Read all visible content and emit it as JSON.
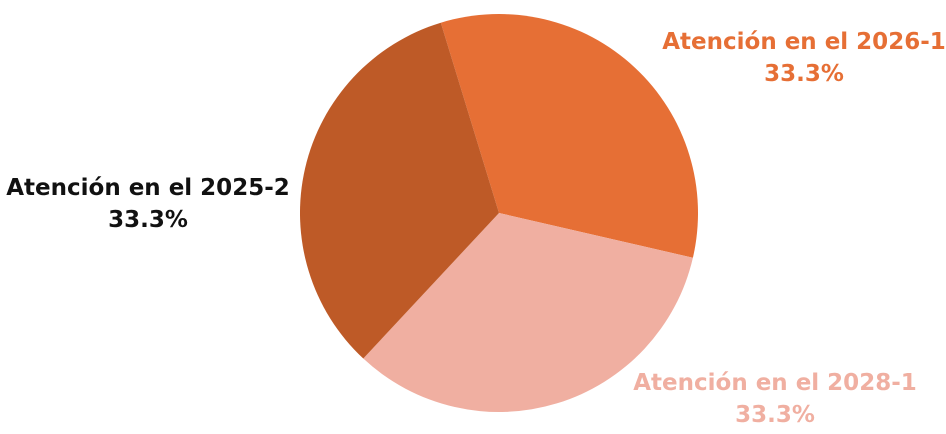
{
  "chart_data": {
    "type": "pie",
    "title": "",
    "start_angle_deg": -17,
    "slices": [
      {
        "label": "Atención en el 2026-1",
        "value": 33.3,
        "percent_label": "33.3%",
        "color": "#E66F35",
        "label_color": "#E66F35"
      },
      {
        "label": "Atención en el 2028-1",
        "value": 33.3,
        "percent_label": "33.3%",
        "color": "#F0AFA1",
        "label_color": "#F0AFA1"
      },
      {
        "label": "Atención en el 2025-2",
        "value": 33.3,
        "percent_label": "33.3%",
        "color": "#BE5A27",
        "label_color": "#111111"
      }
    ],
    "legend": "none"
  }
}
